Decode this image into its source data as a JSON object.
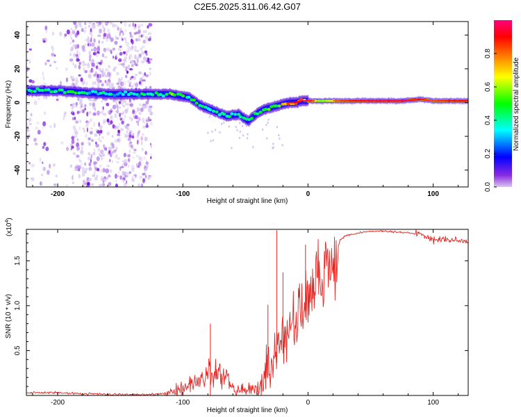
{
  "title": "C2E5.2025.311.06.42.G07",
  "chart_data": [
    {
      "type": "heatmap",
      "xlabel": "Height of straight line (km)",
      "ylabel": "Frequency (Hz)",
      "xlim": [
        -225,
        128
      ],
      "ylim": [
        -50,
        48
      ],
      "xticks": [
        -200,
        -100,
        0,
        100
      ],
      "xtick_labels": [
        "-200",
        "-100",
        "0",
        "100"
      ],
      "yticks": [
        -40,
        -20,
        0,
        20,
        40
      ],
      "ytick_labels": [
        "-40",
        "-20",
        "0",
        "20",
        "40"
      ],
      "colorbar": {
        "label": "Normalized spectral amplitude",
        "range": [
          0,
          1
        ],
        "ticks": [
          0.0,
          0.2,
          0.4,
          0.6,
          0.8
        ],
        "tick_labels": [
          "0.0",
          "0.2",
          "0.4",
          "0.6",
          "0.8"
        ],
        "colors": [
          "#d8c6ee",
          "#8a2be2",
          "#0000ff",
          "#00ffff",
          "#00ff00",
          "#ffff00",
          "#ff8000",
          "#ff0000",
          "#ff007f"
        ]
      },
      "ridge": {
        "x": [
          -225,
          -200,
          -180,
          -160,
          -140,
          -125,
          -110,
          -95,
          -85,
          -75,
          -65,
          -55,
          -48,
          -40,
          -35,
          -30,
          -25,
          -20,
          -15,
          -10,
          -5,
          0,
          10,
          25,
          50,
          75,
          90,
          100,
          115,
          128
        ],
        "y": [
          7,
          7,
          6,
          5,
          5,
          5,
          5,
          3,
          -2,
          -5,
          -8,
          -7,
          -11,
          -6,
          -4,
          -3,
          -2,
          -1,
          0,
          0,
          1,
          1,
          1,
          1,
          1,
          1,
          2,
          1,
          1,
          1
        ],
        "amplitude": [
          0.5,
          0.55,
          0.5,
          0.45,
          0.45,
          0.5,
          0.6,
          0.6,
          0.5,
          0.45,
          0.55,
          0.5,
          0.55,
          0.5,
          0.6,
          0.65,
          0.7,
          0.85,
          0.9,
          0.9,
          0.95,
          0.95,
          0.7,
          0.85,
          0.95,
          0.95,
          0.9,
          0.85,
          0.9,
          0.9
        ]
      },
      "scatter_region": {
        "x_range": [
          -225,
          -125
        ],
        "y_range": [
          -50,
          48
        ],
        "dense_x_range": [
          -190,
          -125
        ]
      }
    },
    {
      "type": "line",
      "xlabel": "Height of straight line (km)",
      "ylabel": "SNR (10 * v/v)",
      "y_multiplier": "(x10",
      "y_multiplier_exp": "4",
      "y_multiplier_close": ")",
      "xlim": [
        -225,
        128
      ],
      "ylim": [
        0,
        1.85
      ],
      "xticks": [
        -200,
        -100,
        0,
        100
      ],
      "xtick_labels": [
        "-200",
        "-100",
        "0",
        "100"
      ],
      "yticks": [
        0.5,
        1.0,
        1.5
      ],
      "ytick_labels": [
        "0.5",
        "1.0",
        "1.5"
      ],
      "color": "#e8231f",
      "envelope": {
        "x": [
          -225,
          -200,
          -180,
          -150,
          -125,
          -110,
          -100,
          -95,
          -90,
          -85,
          -80,
          -75,
          -70,
          -65,
          -60,
          -55,
          -50,
          -45,
          -40,
          -37,
          -35,
          -30,
          -25,
          -20,
          -15,
          -10,
          -5,
          0,
          5,
          10,
          15,
          20,
          25,
          30,
          40,
          50,
          60,
          70,
          80,
          90,
          95,
          100,
          110,
          120,
          128
        ],
        "y": [
          0.03,
          0.03,
          0.02,
          0.01,
          0.01,
          0.03,
          0.07,
          0.12,
          0.15,
          0.2,
          0.24,
          0.25,
          0.22,
          0.2,
          0.08,
          0.06,
          0.06,
          0.07,
          0.12,
          0.2,
          0.35,
          0.5,
          0.62,
          0.72,
          0.85,
          1.0,
          1.1,
          1.25,
          1.38,
          1.5,
          1.58,
          1.65,
          1.72,
          1.78,
          1.81,
          1.83,
          1.83,
          1.82,
          1.81,
          1.8,
          1.77,
          1.73,
          1.74,
          1.73,
          1.72
        ]
      },
      "spikes": [
        {
          "x": -78,
          "y": 0.8
        },
        {
          "x": -32,
          "y": 1.01
        },
        {
          "x": -25,
          "y": 1.84
        },
        {
          "x": -20,
          "y": 1.37
        },
        {
          "x": -2,
          "y": 1.68
        }
      ]
    }
  ]
}
